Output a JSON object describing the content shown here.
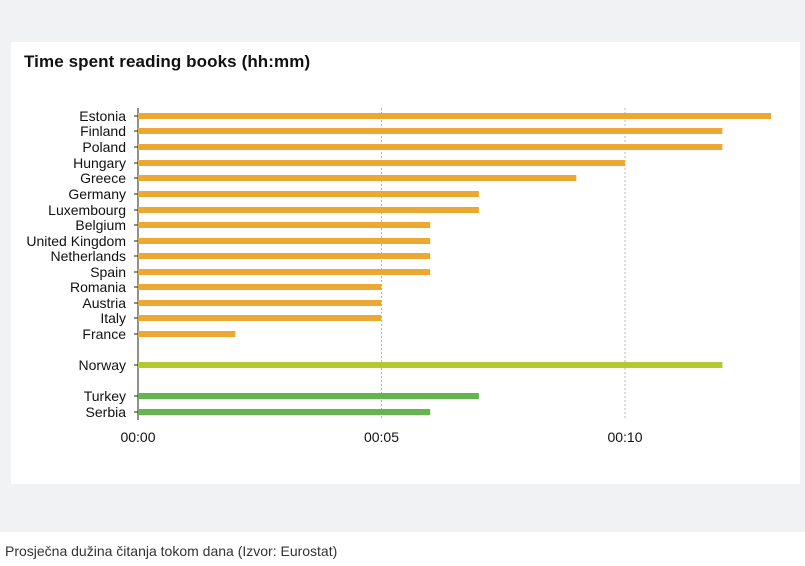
{
  "caption": "Prosječna dužina čitanja tokom dana (Izvor: Eurostat)",
  "chart_data": {
    "type": "bar",
    "orientation": "horizontal",
    "title": "Time spent reading books (hh:mm)",
    "value_unit": "minutes",
    "xlim": [
      0,
      13
    ],
    "x_ticks": [
      {
        "value": 0,
        "label": "00:00"
      },
      {
        "value": 5,
        "label": "00:05"
      },
      {
        "value": 10,
        "label": "00:10"
      }
    ],
    "grid": "vertical dotted at 00:05 and 00:10",
    "colors": {
      "eu": "#eba832",
      "norway": "#b4c832",
      "candidates": "#64b450"
    },
    "rows": [
      {
        "label": "Estonia",
        "value": 13,
        "group": "eu"
      },
      {
        "label": "Finland",
        "value": 12,
        "group": "eu"
      },
      {
        "label": "Poland",
        "value": 12,
        "group": "eu"
      },
      {
        "label": "Hungary",
        "value": 10,
        "group": "eu"
      },
      {
        "label": "Greece",
        "value": 9,
        "group": "eu"
      },
      {
        "label": "Germany",
        "value": 7,
        "group": "eu"
      },
      {
        "label": "Luxembourg",
        "value": 7,
        "group": "eu"
      },
      {
        "label": "Belgium",
        "value": 6,
        "group": "eu"
      },
      {
        "label": "United Kingdom",
        "value": 6,
        "group": "eu"
      },
      {
        "label": "Netherlands",
        "value": 6,
        "group": "eu"
      },
      {
        "label": "Spain",
        "value": 6,
        "group": "eu"
      },
      {
        "label": "Romania",
        "value": 5,
        "group": "eu"
      },
      {
        "label": "Austria",
        "value": 5,
        "group": "eu"
      },
      {
        "label": "Italy",
        "value": 5,
        "group": "eu"
      },
      {
        "label": "France",
        "value": 2,
        "group": "eu"
      },
      {
        "label": "Norway",
        "value": 12,
        "group": "norway"
      },
      {
        "label": "Turkey",
        "value": 7,
        "group": "candidates"
      },
      {
        "label": "Serbia",
        "value": 6,
        "group": "candidates"
      }
    ]
  }
}
